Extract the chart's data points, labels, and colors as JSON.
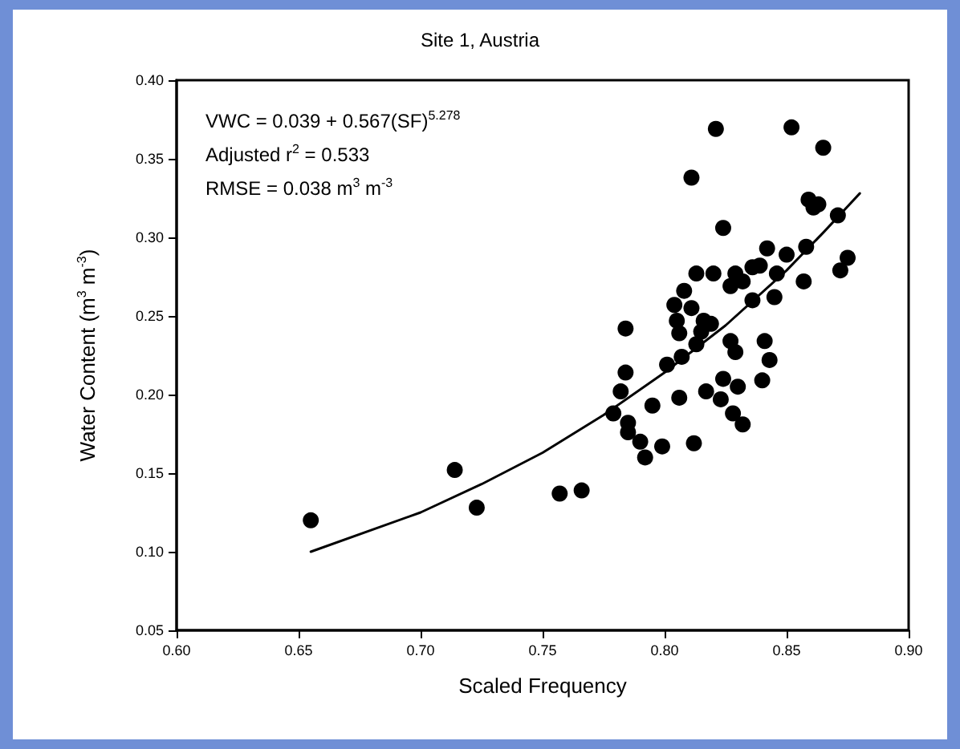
{
  "chart_data": {
    "type": "scatter",
    "title": "Site 1, Austria",
    "xlabel": "Scaled Frequency",
    "ylabel": "Water Content (m$^{3}$ m$^{-3}$)",
    "annotations": [
      "VWC = 0.039 + 0.567(SF)$^{5.278}$",
      "Adjusted r$^{2}$ = 0.533",
      "RMSE = 0.038 m$^{3}$ m$^{-3}$"
    ],
    "xlim": [
      0.6,
      0.9
    ],
    "xticks": [
      {
        "value": 0.6,
        "label": "0.60"
      },
      {
        "value": 0.65,
        "label": "0.65"
      },
      {
        "value": 0.7,
        "label": "0.70"
      },
      {
        "value": 0.75,
        "label": "0.75"
      },
      {
        "value": 0.8,
        "label": "0.80"
      },
      {
        "value": 0.85,
        "label": "0.85"
      },
      {
        "value": 0.9,
        "label": "0.90"
      }
    ],
    "ylim": [
      0.05,
      0.4
    ],
    "yticks": [
      {
        "value": 0.05,
        "label": "0.05"
      },
      {
        "value": 0.1,
        "label": "0.10"
      },
      {
        "value": 0.15,
        "label": "0.15"
      },
      {
        "value": 0.2,
        "label": "0.20"
      },
      {
        "value": 0.25,
        "label": "0.25"
      },
      {
        "value": 0.3,
        "label": "0.30"
      },
      {
        "value": 0.35,
        "label": "0.35"
      },
      {
        "value": 0.4,
        "label": "0.40"
      }
    ],
    "grid": false,
    "legend": false,
    "marker": "circle",
    "series": [
      {
        "color": "#000000",
        "x": [
          0.655,
          0.714,
          0.723,
          0.757,
          0.766,
          0.779,
          0.782,
          0.784,
          0.784,
          0.785,
          0.785,
          0.79,
          0.792,
          0.795,
          0.799,
          0.801,
          0.824,
          0.842,
          0.85,
          0.858,
          0.875,
          0.872,
          0.813,
          0.82,
          0.829,
          0.836,
          0.839,
          0.827,
          0.832,
          0.846,
          0.857,
          0.845,
          0.836,
          0.808,
          0.804,
          0.811,
          0.805,
          0.816,
          0.819,
          0.806,
          0.815,
          0.813,
          0.827,
          0.829,
          0.841,
          0.843,
          0.807,
          0.806,
          0.817,
          0.824,
          0.83,
          0.84,
          0.823,
          0.828,
          0.832,
          0.812,
          0.821,
          0.852,
          0.865,
          0.811,
          0.859,
          0.861,
          0.863,
          0.871
        ],
        "values": [
          0.12,
          0.152,
          0.128,
          0.137,
          0.139,
          0.188,
          0.202,
          0.242,
          0.214,
          0.182,
          0.176,
          0.17,
          0.16,
          0.193,
          0.167,
          0.219,
          0.306,
          0.293,
          0.289,
          0.294,
          0.287,
          0.279,
          0.277,
          0.277,
          0.277,
          0.281,
          0.282,
          0.269,
          0.272,
          0.277,
          0.272,
          0.262,
          0.26,
          0.266,
          0.257,
          0.255,
          0.247,
          0.247,
          0.245,
          0.239,
          0.24,
          0.232,
          0.234,
          0.227,
          0.234,
          0.222,
          0.224,
          0.198,
          0.202,
          0.21,
          0.205,
          0.209,
          0.197,
          0.188,
          0.181,
          0.169,
          0.369,
          0.37,
          0.357,
          0.338,
          0.324,
          0.319,
          0.321,
          0.314
        ]
      },
      {
        "type": "line",
        "color": "#000000",
        "marker": "none",
        "line_style": "solid",
        "x": [
          0.655,
          0.7,
          0.725,
          0.75,
          0.775,
          0.8,
          0.825,
          0.85,
          0.865,
          0.88
        ],
        "values": [
          0.1,
          0.125,
          0.143,
          0.163,
          0.187,
          0.214,
          0.244,
          0.279,
          0.303,
          0.328
        ]
      }
    ]
  }
}
